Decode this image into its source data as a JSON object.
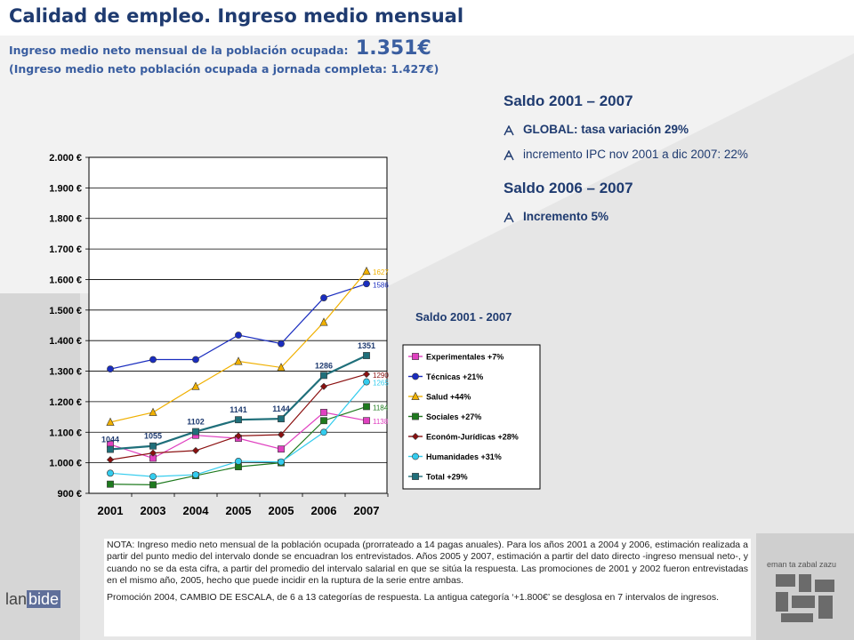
{
  "header": {
    "title": "Calidad de empleo. Ingreso medio mensual",
    "subtitle_text": "Ingreso medio neto mensual de la población ocupada:",
    "subtitle_value": "1.351€",
    "subtitle2": "(Ingreso medio neto población ocupada a jornada completa: 1.427€)"
  },
  "saldo_a": {
    "heading": "Saldo 2001 – 2007",
    "bullets": [
      "GLOBAL: tasa variación 29%",
      "incremento IPC nov 2001 a dic 2007: 22%"
    ]
  },
  "saldo_b": {
    "heading": "Saldo 2006 – 2007",
    "bullets": [
      "Incremento 5%"
    ]
  },
  "chart_subtitle": "Saldo 2001 - 2007",
  "colors": {
    "title": "#1f3b70",
    "subtitle": "#3a5ea0",
    "background_grey": "#e4e4e4"
  },
  "chart_data": {
    "type": "line",
    "categories": [
      "2001",
      "2003",
      "2004",
      "2005",
      "2005",
      "2006",
      "2007"
    ],
    "ylim": [
      900,
      2000
    ],
    "yticks": [
      "900 €",
      "1.000 €",
      "1.100 €",
      "1.200 €",
      "1.300 €",
      "1.400 €",
      "1.500 €",
      "1.600 €",
      "1.700 €",
      "1.800 €",
      "1.900 €",
      "2.000 €"
    ],
    "legend_position": "right",
    "grid": true,
    "series": [
      {
        "name": "Experimentales +7%",
        "color": "#e040c0",
        "marker": "square",
        "values": [
          1060,
          1015,
          1090,
          1080,
          1045,
          1165,
          1138
        ],
        "end_label": "1138"
      },
      {
        "name": "Técnicas +21%",
        "color": "#1a2dbf",
        "marker": "circle",
        "values": [
          1307,
          1338,
          1338,
          1418,
          1390,
          1540,
          1586
        ],
        "end_label": "1586"
      },
      {
        "name": "Salud +44%",
        "color": "#f0b000",
        "marker": "triangle",
        "values": [
          1133,
          1165,
          1250,
          1332,
          1312,
          1460,
          1627
        ],
        "end_label": "1627"
      },
      {
        "name": "Sociales +27%",
        "color": "#1e7a1e",
        "marker": "square",
        "values": [
          930,
          928,
          958,
          987,
          1000,
          1138,
          1184
        ],
        "end_label": "1184"
      },
      {
        "name": "Económ-Jurídicas +28%",
        "color": "#8b1010",
        "marker": "diamond",
        "values": [
          1010,
          1032,
          1040,
          1088,
          1092,
          1250,
          1290
        ],
        "end_label": "1290"
      },
      {
        "name": "Humanidades +31%",
        "color": "#33ccee",
        "marker": "circle",
        "values": [
          966,
          955,
          961,
          1005,
          1003,
          1100,
          1265
        ],
        "end_label": "1265"
      },
      {
        "name": "Total +29%",
        "color": "#1f6f7a",
        "marker": "square",
        "values": [
          1044,
          1055,
          1102,
          1141,
          1144,
          1286,
          1351
        ],
        "point_labels": [
          "1044",
          "1055",
          "1102",
          "1141",
          "1144",
          "1286",
          "1351"
        ]
      }
    ]
  },
  "note": {
    "p1": "NOTA: Ingreso medio neto mensual de la población ocupada (prorrateado a 14 pagas anuales). Para los años 2001 a 2004 y 2006, estimación realizada a partir del punto medio del intervalo donde se encuadran los entrevistados. Años 2005 y 2007, estimación a partir del dato directo -ingreso mensual neto-, y cuando no se da esta cifra, a partir del promedio del intervalo salarial en que se sitúa la respuesta. Las promociones de 2001 y 2002 fueron entrevistadas en el mismo año, 2005, hecho que puede incidir en la ruptura de la serie entre ambas.",
    "p2": "Promoción 2004, CAMBIO DE ESCALA, de 6 a 13 categorías de respuesta. La antigua categoría ‘+1.800€’ se desglosa en 7 intervalos de ingresos."
  },
  "logos": {
    "lanbide_prefix": "lan",
    "lanbide_highlight": "bide",
    "eman_text": "eman ta zabal zazu"
  }
}
